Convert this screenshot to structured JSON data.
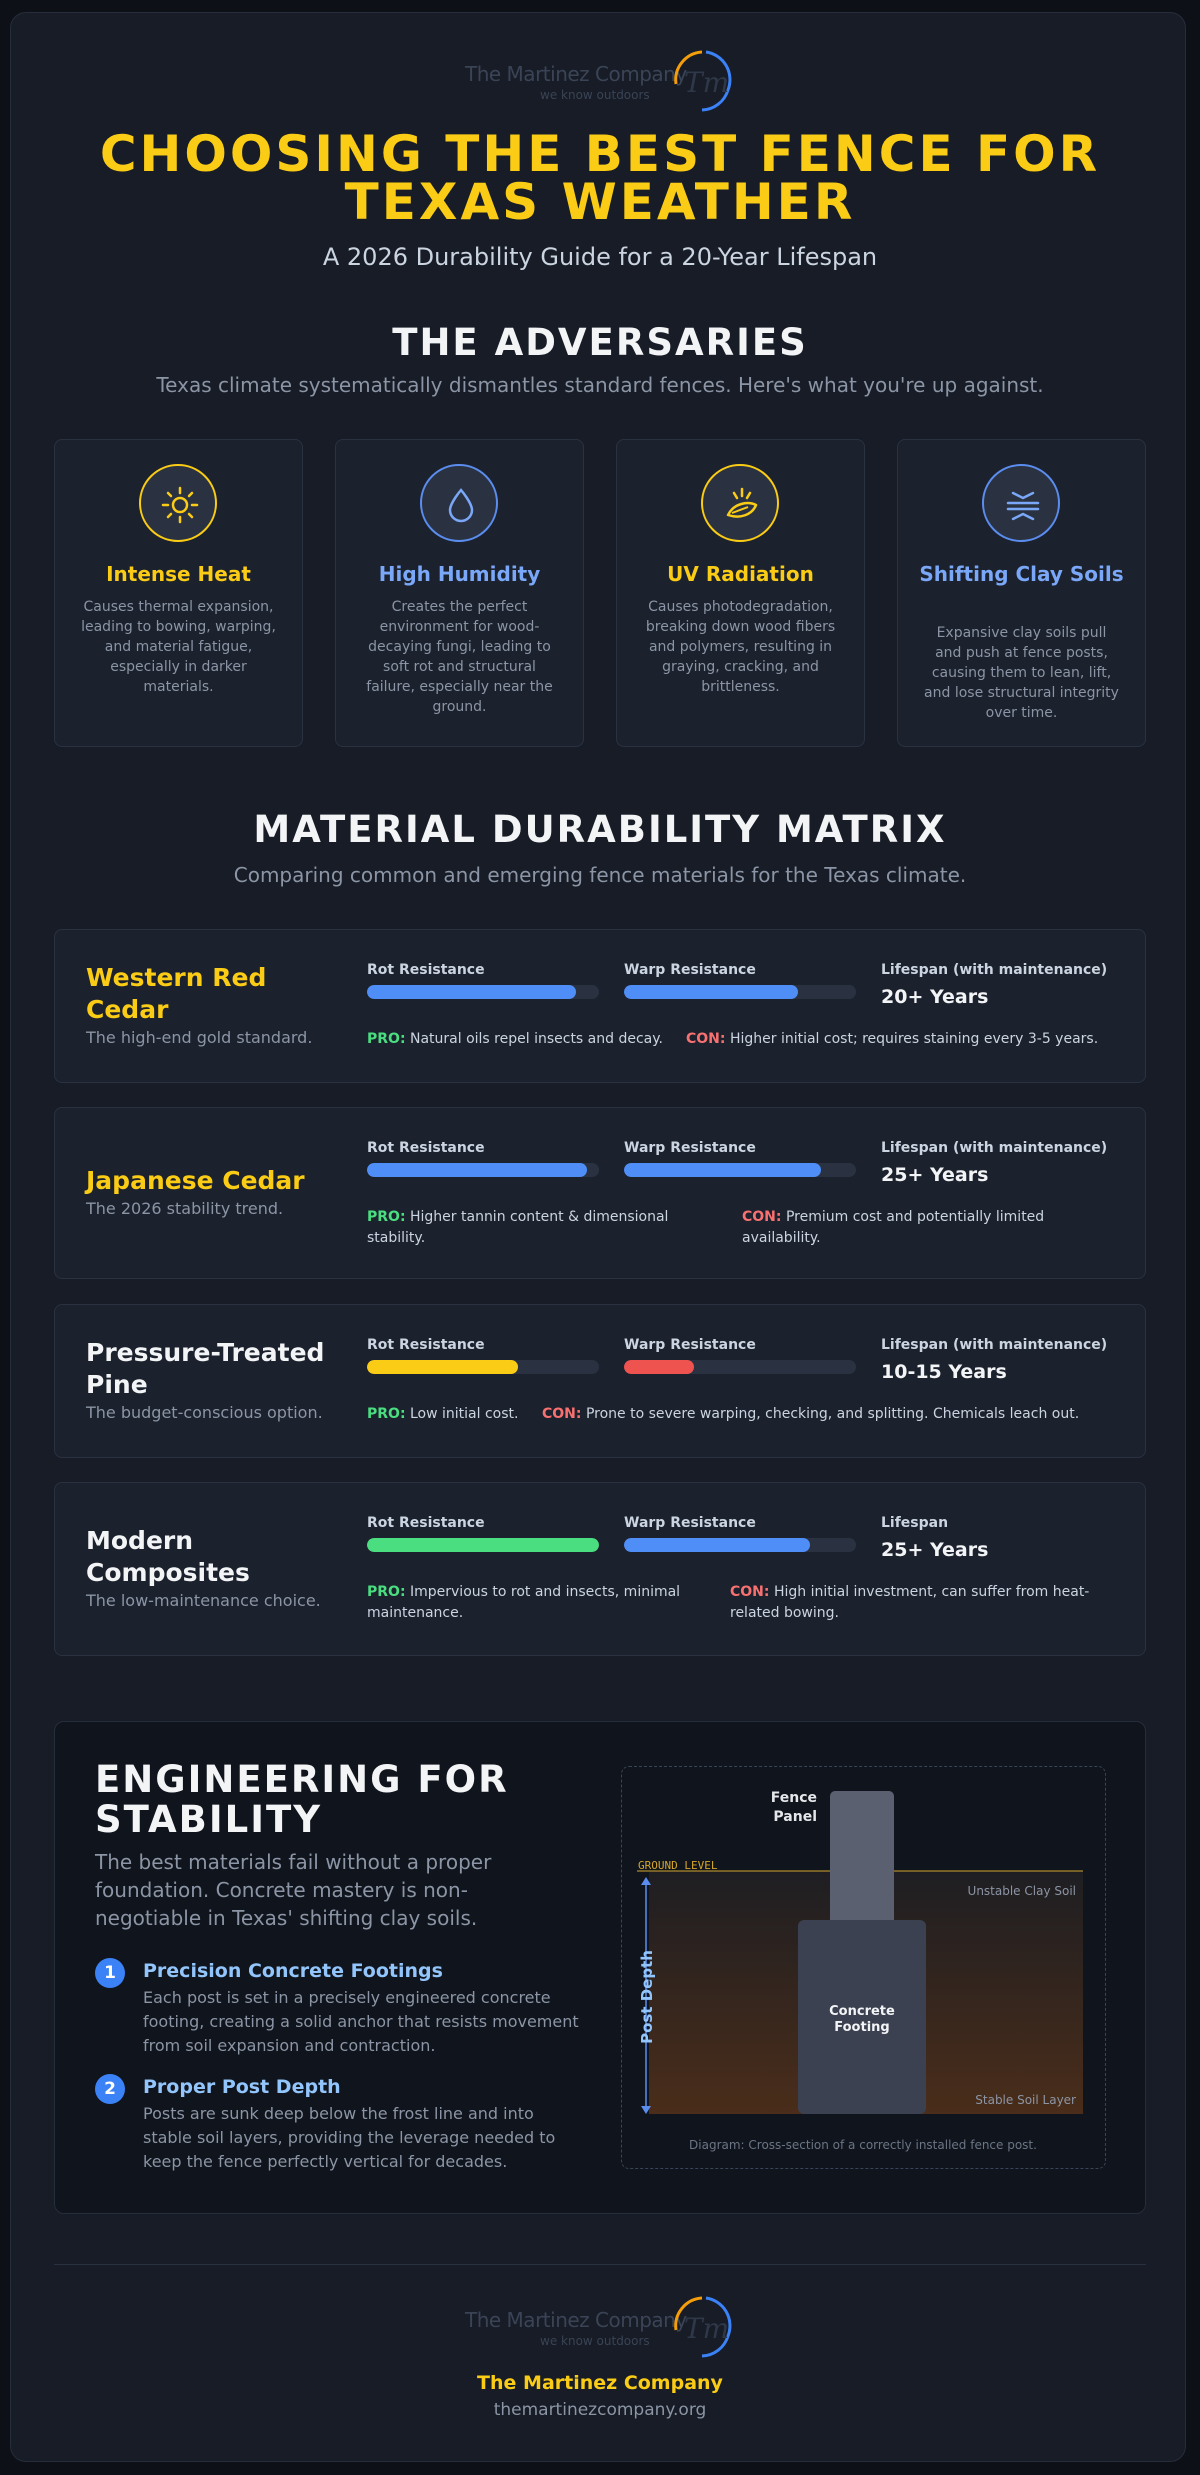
{
  "brand": {
    "name": "The Martinez Company",
    "tagline": "we know outdoors",
    "monogram": "Tm",
    "url": "themartinezcompany.org"
  },
  "header": {
    "title_line1": "CHOOSING THE BEST FENCE FOR",
    "title_line2": "TEXAS WEATHER",
    "subtitle": "A 2026 Durability Guide for a 20-Year Lifespan"
  },
  "adversaries": {
    "heading": "THE ADVERSARIES",
    "subheading": "Texas climate systematically dismantles standard fences. Here's what you're up against.",
    "items": [
      {
        "title": "Intense Heat",
        "icon": "sun-icon",
        "color": "#facc15",
        "description": "Causes thermal expansion, leading to bowing, warping, and material fatigue, especially in darker materials."
      },
      {
        "title": "High Humidity",
        "icon": "droplet-icon",
        "color": "#7aa7f7",
        "description": "Creates the perfect environment for wood-decaying fungi, leading to soft rot and structural failure, especially near the ground."
      },
      {
        "title": "UV Radiation",
        "icon": "leaf-sun-icon",
        "color": "#facc15",
        "description": "Causes photodegradation, breaking down wood fibers and polymers, resulting in graying, cracking, and brittleness."
      },
      {
        "title": "Shifting Clay Soils",
        "icon": "soil-layers-icon",
        "color": "#7aa7f7",
        "description": "Expansive clay soils pull and push at fence posts, causing them to lean, lift, and lose structural integrity over time."
      }
    ]
  },
  "matrix": {
    "heading": "MATERIAL DURABILITY MATRIX",
    "subheading": "Comparing common and emerging fence materials for the Texas climate.",
    "rot_label": "Rot Resistance",
    "warp_label": "Warp Resistance",
    "pro_label": "PRO:",
    "con_label": "CON:",
    "materials": [
      {
        "name": "Western Red Cedar",
        "name_color": "#facc15",
        "tagline": "The high-end gold standard.",
        "rot": 0.9,
        "rot_color": "#4f8ef7",
        "warp": 0.75,
        "warp_color": "#4f8ef7",
        "lifespan_label": "Lifespan (with maintenance)",
        "lifespan": "20+ Years",
        "pro": "Natural oils repel insects and decay.",
        "con": "Higher initial cost; requires staining every 3-5 years."
      },
      {
        "name": "Japanese Cedar",
        "name_color": "#facc15",
        "tagline": "The 2026 stability trend.",
        "rot": 0.95,
        "rot_color": "#4f8ef7",
        "warp": 0.85,
        "warp_color": "#4f8ef7",
        "lifespan_label": "Lifespan (with maintenance)",
        "lifespan": "25+ Years",
        "pro": "Higher tannin content & dimensional stability.",
        "con": "Premium cost and potentially limited availability."
      },
      {
        "name": "Pressure-Treated Pine",
        "name_color": "#f3f4f6",
        "tagline": "The budget-conscious option.",
        "rot": 0.65,
        "rot_color": "#facc15",
        "warp": 0.3,
        "warp_color": "#ef5350",
        "lifespan_label": "Lifespan (with maintenance)",
        "lifespan": "10-15 Years",
        "pro": "Low initial cost.",
        "con": "Prone to severe warping, checking, and splitting. Chemicals leach out."
      },
      {
        "name": "Modern Composites",
        "name_color": "#f3f4f6",
        "tagline": "The low-maintenance choice.",
        "rot": 1.0,
        "rot_color": "#4ade80",
        "warp": 0.8,
        "warp_color": "#4f8ef7",
        "lifespan_label": "Lifespan",
        "lifespan": "25+ Years",
        "pro": "Impervious to rot and insects, minimal maintenance.",
        "con": "High initial investment, can suffer from heat-related bowing."
      }
    ]
  },
  "engineering": {
    "heading_line1": "ENGINEERING FOR",
    "heading_line2": "STABILITY",
    "paragraph": "The best materials fail without a proper foundation. Concrete mastery is non-negotiable in Texas' shifting clay soils.",
    "steps": [
      {
        "num": "1",
        "title": "Precision Concrete Footings",
        "description": "Each post is set in a precisely engineered concrete footing, creating a solid anchor that resists movement from soil expansion and contraction."
      },
      {
        "num": "2",
        "title": "Proper Post Depth",
        "description": "Posts are sunk deep below the frost line and into stable soil layers, providing the leverage needed to keep the fence perfectly vertical for decades."
      }
    ],
    "diagram": {
      "fence_panel_1": "Fence",
      "fence_panel_2": "Panel",
      "ground_level": "GROUND LEVEL",
      "unstable": "Unstable Clay Soil",
      "stable": "Stable Soil Layer",
      "footing_1": "Concrete",
      "footing_2": "Footing",
      "post_depth": "Post Depth",
      "caption": "Diagram: Cross-section of a correctly installed fence post."
    }
  }
}
